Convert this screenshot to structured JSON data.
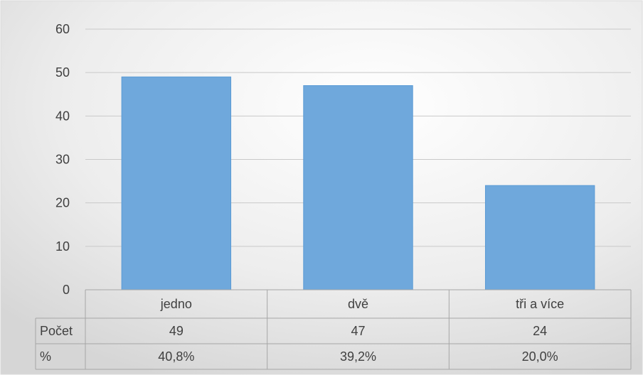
{
  "chart_data": {
    "type": "bar",
    "categories": [
      "jedno",
      "dvě",
      "tři a více"
    ],
    "series": [
      {
        "values": [
          49,
          47,
          24
        ]
      }
    ],
    "ylim": [
      0,
      60
    ],
    "yticks": [
      0,
      10,
      20,
      30,
      40,
      50,
      60
    ],
    "grid": true,
    "bar_color": "#6fa8dc",
    "bar_edge_color": "#5b9bd5",
    "data_table": {
      "rows": [
        {
          "label": "Počet",
          "values": [
            "49",
            "47",
            "24"
          ]
        },
        {
          "label": "%",
          "values": [
            "40,8%",
            "39,2%",
            "20,0%"
          ]
        }
      ]
    }
  }
}
